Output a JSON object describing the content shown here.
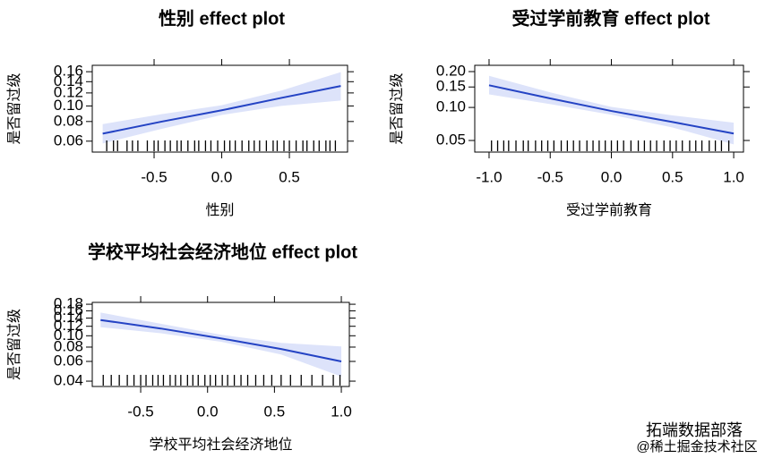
{
  "chart_data": [
    {
      "type": "line",
      "title": "性别 effect plot",
      "x_label": "性别",
      "y_label": "是否留过级",
      "y_scale": "logit",
      "x": [
        -0.88,
        -0.44,
        0,
        0.44,
        0.88
      ],
      "series": [
        {
          "name": "fit",
          "color": "#2443c4",
          "values": [
            0.067,
            0.08,
            0.094,
            0.112,
            0.132
          ]
        }
      ],
      "band": {
        "color": "#dde3fa",
        "lower": [
          0.058,
          0.072,
          0.088,
          0.1,
          0.108
        ],
        "upper": [
          0.077,
          0.089,
          0.101,
          0.124,
          0.159
        ]
      },
      "rug": [
        -0.85,
        -0.8,
        -0.77,
        -0.7,
        -0.66,
        -0.62,
        -0.55,
        -0.5,
        -0.47,
        -0.42,
        -0.38,
        -0.33,
        -0.3,
        -0.25,
        -0.2,
        -0.17,
        -0.12,
        -0.08,
        -0.03,
        0.02,
        0.06,
        0.1,
        0.15,
        0.2,
        0.24,
        0.28,
        0.33,
        0.38,
        0.41,
        0.46,
        0.5,
        0.55,
        0.6,
        0.63,
        0.68,
        0.72,
        0.77,
        0.8,
        0.84
      ],
      "xlim": [
        -0.957,
        0.93
      ],
      "xticks": [
        -0.5,
        {
          "value": 0,
          "label": "0.0"
        },
        0.5
      ],
      "ylim": [
        0.051,
        0.174
      ],
      "yticks": [
        0.06,
        0.08,
        {
          "value": 0.1,
          "label": "0.10"
        },
        0.12,
        0.14,
        0.16
      ]
    },
    {
      "type": "line",
      "title": "受过学前教育 effect plot",
      "x_label": "受过学前教育",
      "y_label": "是否留过级",
      "y_scale": "logit",
      "x": [
        -1,
        -0.5,
        0,
        0.5,
        1
      ],
      "series": [
        {
          "name": "fit",
          "color": "#2443c4",
          "values": [
            0.155,
            0.12,
            0.093,
            0.074,
            0.058
          ]
        }
      ],
      "band": {
        "color": "#dde3fa",
        "lower": [
          0.13,
          0.107,
          0.086,
          0.066,
          0.046
        ],
        "upper": [
          0.185,
          0.135,
          0.101,
          0.085,
          0.073
        ]
      },
      "rug": [
        -0.98,
        -0.93,
        -0.88,
        -0.84,
        -0.78,
        -0.72,
        -0.68,
        -0.62,
        -0.57,
        -0.52,
        -0.47,
        -0.41,
        -0.36,
        -0.31,
        -0.26,
        -0.2,
        -0.15,
        -0.1,
        -0.05,
        0,
        0.05,
        0.1,
        0.16,
        0.22,
        0.27,
        0.32,
        0.37,
        0.43,
        0.48,
        0.53,
        0.58,
        0.64,
        0.69,
        0.74,
        0.8,
        0.85,
        0.9,
        0.96
      ],
      "xlim": [
        -1.117,
        1.08
      ],
      "xticks": [
        {
          "value": -1,
          "label": "-1.0"
        },
        -0.5,
        {
          "value": 0,
          "label": "0.0"
        },
        0.5,
        {
          "value": 1,
          "label": "1.0"
        }
      ],
      "ylim": [
        0.0389,
        0.2237
      ],
      "yticks": [
        0.05,
        {
          "value": 0.1,
          "label": "0.10"
        },
        0.15,
        {
          "value": 0.2,
          "label": "0.20"
        }
      ]
    },
    {
      "type": "line",
      "title": "学校平均社会经济地位 effect plot",
      "x_label": "学校平均社会经济地位",
      "y_label": "是否留过级",
      "y_scale": "logit",
      "x": [
        -0.8,
        -0.35,
        0.1,
        0.55,
        1
      ],
      "series": [
        {
          "name": "fit",
          "color": "#2443c4",
          "values": [
            0.135,
            0.115,
            0.095,
            0.077,
            0.06
          ]
        }
      ],
      "band": {
        "color": "#dde3fa",
        "lower": [
          0.118,
          0.105,
          0.089,
          0.069,
          0.044
        ],
        "upper": [
          0.155,
          0.126,
          0.102,
          0.087,
          0.081
        ]
      },
      "rug": [
        -0.78,
        -0.72,
        -0.66,
        -0.6,
        -0.55,
        -0.5,
        -0.46,
        -0.41,
        -0.37,
        -0.33,
        -0.28,
        -0.24,
        -0.2,
        -0.15,
        -0.11,
        -0.07,
        -0.02,
        0.02,
        0.06,
        0.11,
        0.15,
        0.2,
        0.25,
        0.3,
        0.36,
        0.42,
        0.48,
        0.55,
        0.62,
        0.7,
        0.78,
        0.86,
        0.94,
        0.99
      ],
      "xlim": [
        -0.862,
        1.06
      ],
      "xticks": [
        -0.5,
        {
          "value": 0,
          "label": "0.0"
        },
        0.5,
        {
          "value": 1,
          "label": "1.0"
        }
      ],
      "ylim": [
        0.0358,
        0.186
      ],
      "yticks": [
        0.04,
        0.06,
        0.08,
        {
          "value": 0.1,
          "label": "0.10"
        },
        0.12,
        0.14,
        0.16,
        0.18
      ]
    }
  ],
  "watermark": {
    "brand": "拓端数据部落",
    "source": "@稀土掘金技术社区"
  }
}
